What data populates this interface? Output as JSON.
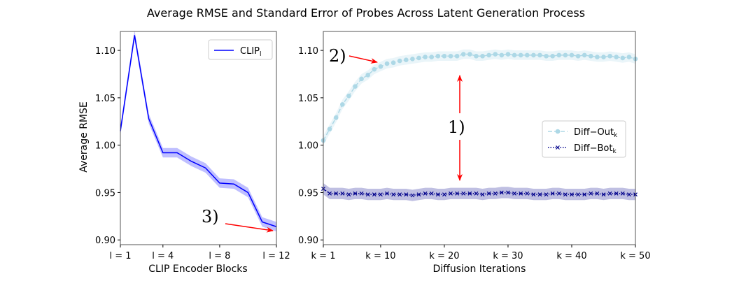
{
  "chart_data": [
    {
      "type": "line",
      "title": "Average RMSE and Standard Error of Probes Across Latent Generation Process",
      "xlabel": "CLIP Encoder Blocks",
      "ylabel": "Average RMSE",
      "xlim": [
        1,
        12
      ],
      "ylim": [
        0.895,
        1.12
      ],
      "xticks": [
        1,
        4,
        8,
        12
      ],
      "xtick_labels": [
        "l = 1",
        "l = 4",
        "l = 8",
        "l = 12"
      ],
      "yticks": [
        0.9,
        0.95,
        1.0,
        1.05,
        1.1
      ],
      "ytick_labels": [
        "0.90",
        "0.95",
        "1.00",
        "1.05",
        "1.10"
      ],
      "legend_placement": "top-right",
      "grid": false,
      "series": [
        {
          "name": "CLIP",
          "name_sub": "l",
          "color": "#0000ff",
          "style": "solid",
          "x": [
            1,
            2,
            3,
            4,
            5,
            6,
            7,
            8,
            9,
            10,
            11,
            12
          ],
          "values": [
            1.015,
            1.116,
            1.028,
            0.992,
            0.992,
            0.983,
            0.976,
            0.96,
            0.959,
            0.95,
            0.919,
            0.914
          ],
          "stderr": 0.005
        }
      ],
      "annotations": [
        {
          "label": "3)",
          "arrow_to": [
            12,
            0.91
          ]
        }
      ]
    },
    {
      "type": "line",
      "xlabel": "Diffusion Iterations",
      "xlim": [
        1,
        50
      ],
      "ylim": [
        0.895,
        1.12
      ],
      "xticks": [
        1,
        10,
        20,
        30,
        40,
        50
      ],
      "xtick_labels": [
        "k = 1",
        "k = 10",
        "k = 20",
        "k = 30",
        "k = 40",
        "k = 50"
      ],
      "yticks": [
        0.9,
        0.95,
        1.0,
        1.05,
        1.1
      ],
      "ytick_labels": [
        "0.90",
        "0.95",
        "1.00",
        "1.05",
        "1.10"
      ],
      "legend_placement": "center-right",
      "grid": false,
      "series": [
        {
          "name": "Diff−Out",
          "name_sub": "k",
          "color": "#add8e6",
          "style": "dashed",
          "marker": "circle",
          "values": [
            1.005,
            1.017,
            1.029,
            1.043,
            1.052,
            1.062,
            1.07,
            1.074,
            1.08,
            1.083,
            1.086,
            1.087,
            1.089,
            1.09,
            1.091,
            1.092,
            1.093,
            1.093,
            1.094,
            1.094,
            1.094,
            1.094,
            1.096,
            1.096,
            1.094,
            1.094,
            1.095,
            1.096,
            1.095,
            1.096,
            1.095,
            1.095,
            1.095,
            1.095,
            1.095,
            1.094,
            1.094,
            1.095,
            1.095,
            1.095,
            1.094,
            1.095,
            1.094,
            1.093,
            1.093,
            1.094,
            1.093,
            1.092,
            1.093,
            1.091
          ],
          "stderr": 0.005
        },
        {
          "name": "Diff−Bot",
          "name_sub": "k",
          "color": "#00008b",
          "style": "dotted",
          "marker": "x",
          "values": [
            0.954,
            0.949,
            0.949,
            0.949,
            0.948,
            0.949,
            0.949,
            0.948,
            0.948,
            0.948,
            0.949,
            0.948,
            0.948,
            0.948,
            0.947,
            0.948,
            0.949,
            0.949,
            0.948,
            0.948,
            0.949,
            0.949,
            0.949,
            0.949,
            0.949,
            0.948,
            0.949,
            0.949,
            0.95,
            0.95,
            0.949,
            0.949,
            0.949,
            0.948,
            0.948,
            0.948,
            0.949,
            0.949,
            0.948,
            0.948,
            0.948,
            0.948,
            0.949,
            0.949,
            0.948,
            0.949,
            0.949,
            0.949,
            0.948,
            0.948
          ],
          "stderr": 0.006
        }
      ],
      "annotations": [
        {
          "label": "1)",
          "meaning": "gap arrow between series at k = 22"
        },
        {
          "label": "2)",
          "arrow_to": [
            9,
            1.095
          ]
        }
      ]
    }
  ]
}
